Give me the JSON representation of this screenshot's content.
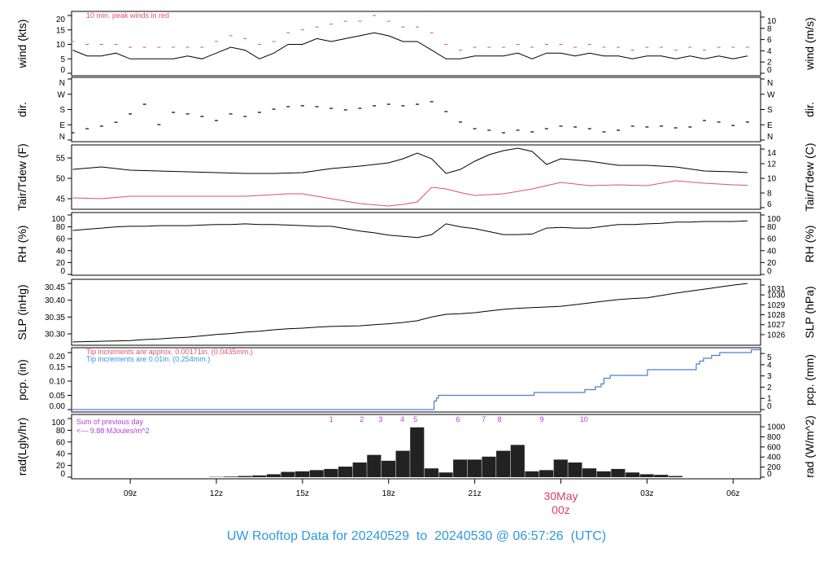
{
  "title": "UW Rooftop Data for 20240529  to  20240530 @ 06:57:26  (UTC)",
  "colors": {
    "line": "#000000",
    "gust": "#e0506e",
    "dew": "#e0506e",
    "pcp": "#4a7fd0",
    "pcp_note2": "#2f97e0",
    "rad_text": "#b040e0",
    "date_label": "#d94060",
    "title": "#2f97e0"
  },
  "chart_data": [
    {
      "type": "line",
      "id": "wind",
      "ylabel": "wind (kts)",
      "ylabel_right": "wind (m/s)",
      "yticks": [
        "0",
        "5",
        "10",
        "15",
        "20"
      ],
      "ylim": [
        0,
        20
      ],
      "yticks_right": [
        "0",
        "2",
        "4",
        "6",
        "8",
        "10"
      ],
      "annotation": "10 min. peak winds in red",
      "start": "2024-05-29 07:00",
      "interval_minutes": 30,
      "series": [
        {
          "name": "wind",
          "values": [
            8,
            6,
            6,
            7,
            5,
            5,
            5,
            5,
            6,
            5,
            7,
            9,
            8,
            5,
            7,
            10,
            10,
            12,
            11,
            12,
            13,
            14,
            13,
            11,
            11,
            8,
            5,
            5,
            6,
            6,
            6,
            7,
            5,
            7,
            7,
            6,
            7,
            6,
            6,
            5,
            6,
            6,
            5,
            6,
            5,
            6,
            5,
            6
          ]
        },
        {
          "name": "10 min. peak winds",
          "values": [
            11,
            10,
            10,
            10,
            9,
            9,
            9,
            9,
            9,
            9,
            11,
            13,
            12,
            10,
            11,
            14,
            15,
            16,
            17,
            18,
            18,
            20,
            18,
            16,
            16,
            14,
            10,
            8,
            9,
            9,
            9,
            10,
            9,
            10,
            10,
            9,
            10,
            9,
            9,
            8,
            9,
            9,
            8,
            9,
            8,
            9,
            9,
            9
          ]
        }
      ]
    },
    {
      "type": "scatter",
      "id": "dir",
      "ylabel": "dir.",
      "ylabel_right": "dir.",
      "yticks": [
        "N",
        "E",
        "S",
        "W",
        "N"
      ],
      "ylim": [
        0,
        360
      ],
      "start": "2024-05-29 07:00",
      "interval_minutes": 30,
      "series": [
        {
          "values": [
            43,
            67,
            82,
            105,
            154,
            211,
            91,
            163,
            154,
            139,
            115,
            154,
            139,
            163,
            182,
            197,
            202,
            197,
            187,
            178,
            187,
            202,
            211,
            202,
            211,
            226,
            168,
            106,
            67,
            58,
            43,
            58,
            48,
            67,
            82,
            77,
            67,
            48,
            58,
            82,
            77,
            82,
            72,
            77,
            115,
            106,
            86,
            106
          ]
        }
      ]
    },
    {
      "type": "line",
      "id": "temp",
      "ylabel": "Tair/Tdew (F)",
      "ylabel_right": "Tair/Tdew (C)",
      "yticks": [
        "45",
        "50",
        "55"
      ],
      "ylim": [
        45,
        55
      ],
      "yticks_right": [
        "6",
        "8",
        "10",
        "12",
        "14"
      ],
      "start": "2024-05-29 07:00",
      "interval_minutes": 30,
      "series": [
        {
          "name": "Tair",
          "values": [
            52.2,
            52.5,
            52.8,
            52.4,
            52.0,
            51.9,
            51.8,
            51.7,
            51.6,
            51.5,
            51.4,
            51.3,
            51.2,
            51.2,
            51.2,
            51.3,
            51.4,
            51.9,
            52.4,
            52.7,
            53.0,
            53.4,
            53.8,
            54.8,
            56.2,
            54.8,
            51.2,
            52.2,
            54.2,
            55.8,
            56.8,
            57.4,
            56.6,
            53.4,
            54.8,
            54.5,
            54.2,
            53.7,
            53.2,
            53.2,
            53.2,
            53.0,
            52.8,
            52.3,
            51.8,
            51.7,
            51.6,
            51.4
          ]
        },
        {
          "name": "Tdew",
          "values": [
            45.2,
            45.1,
            45.0,
            45.3,
            45.6,
            45.6,
            45.6,
            45.6,
            45.6,
            45.6,
            45.6,
            45.6,
            45.6,
            45.8,
            46.0,
            46.2,
            46.2,
            45.6,
            45.0,
            44.4,
            43.8,
            43.5,
            43.2,
            43.6,
            44.2,
            47.8,
            47.4,
            46.5,
            45.8,
            46.0,
            46.2,
            46.8,
            47.4,
            48.2,
            49.0,
            48.6,
            48.2,
            48.3,
            48.4,
            48.3,
            48.2,
            48.8,
            49.4,
            49.1,
            48.8,
            48.6,
            48.4,
            48.3
          ]
        }
      ]
    },
    {
      "type": "line",
      "id": "rh",
      "ylabel": "RH (%)",
      "ylabel_right": "RH (%)",
      "yticks": [
        "0",
        "20",
        "40",
        "60",
        "80",
        "100"
      ],
      "ylim": [
        0,
        100
      ],
      "yticks_right": [
        "0",
        "20",
        "40",
        "60",
        "80",
        "100"
      ],
      "start": "2024-05-29 07:00",
      "interval_minutes": 30,
      "series": [
        {
          "values": [
            74,
            76,
            78,
            80,
            81,
            81,
            82,
            82,
            82,
            83,
            84,
            84,
            85,
            84,
            84,
            83,
            82,
            81,
            81,
            77,
            73,
            70,
            66,
            64,
            62,
            67,
            85,
            80,
            77,
            72,
            67,
            67,
            68,
            78,
            79,
            78,
            78,
            81,
            84,
            84,
            85,
            86,
            88,
            88,
            89,
            89,
            89,
            90
          ]
        }
      ]
    },
    {
      "type": "line",
      "id": "slp",
      "ylabel": "SLP (inHg)",
      "ylabel_right": "SLP (hPa)",
      "yticks": [
        "30.30",
        "30.35",
        "30.40",
        "30.45"
      ],
      "ylim": [
        30.3,
        30.45
      ],
      "yticks_right": [
        "1026",
        "1027",
        "1028",
        "1029",
        "1030",
        "1031"
      ],
      "start": "2024-05-29 07:00",
      "interval_minutes": 30,
      "series": [
        {
          "values": [
            30.276,
            30.277,
            30.278,
            30.279,
            30.28,
            30.283,
            30.285,
            30.288,
            30.29,
            30.294,
            30.298,
            30.301,
            30.305,
            30.308,
            30.312,
            30.315,
            30.317,
            30.32,
            30.322,
            30.323,
            30.324,
            30.327,
            30.33,
            30.334,
            30.339,
            30.35,
            30.358,
            30.36,
            30.363,
            30.368,
            30.373,
            30.376,
            30.378,
            30.38,
            30.382,
            30.387,
            30.392,
            30.397,
            30.402,
            30.405,
            30.407,
            30.414,
            30.421,
            30.427,
            30.433,
            30.439,
            30.445,
            30.45
          ]
        }
      ]
    },
    {
      "type": "line",
      "id": "pcp",
      "ylabel": "pcp. (in)",
      "ylabel_right": "pcp. (mm)",
      "yticks": [
        "0.00",
        "0.05",
        "0.10",
        "0.15",
        "0.20"
      ],
      "ylim": [
        0,
        0.2
      ],
      "yticks_right": [
        "0",
        "1",
        "2",
        "3",
        "4",
        "5"
      ],
      "notes": [
        "Tip increments are approx. 0.00171in. (0.0435mm.)",
        "Tip increments are 0.01in. (0.254mm.)"
      ],
      "steps": [
        [
          "05-29 06:57",
          0
        ],
        [
          "05-29 19:28",
          0
        ],
        [
          "05-29 19:35",
          0.03
        ],
        [
          "05-29 19:40",
          0.04
        ],
        [
          "05-29 19:44",
          0.05
        ],
        [
          "05-29 23:04",
          0.06
        ],
        [
          "05-30 00:50",
          0.07
        ],
        [
          "05-30 01:12",
          0.08
        ],
        [
          "05-30 01:24",
          0.09
        ],
        [
          "05-30 01:30",
          0.11
        ],
        [
          "05-30 01:43",
          0.12
        ],
        [
          "05-30 03:01",
          0.14
        ],
        [
          "05-30 04:43",
          0.16
        ],
        [
          "05-30 04:50",
          0.17
        ],
        [
          "05-30 04:58",
          0.18
        ],
        [
          "05-30 05:15",
          0.19
        ],
        [
          "05-30 05:32",
          0.2
        ],
        [
          "05-30 06:38",
          0.21
        ],
        [
          "05-30 06:57",
          0.21
        ]
      ]
    },
    {
      "type": "bar",
      "id": "rad",
      "ylabel": "rad(Lgly/hr)",
      "ylabel_right": "rad (W/m^2)",
      "yticks": [
        "0",
        "20",
        "40",
        "60",
        "80",
        "100"
      ],
      "ylim": [
        0,
        100
      ],
      "yticks_right": [
        "0",
        "200",
        "400",
        "600",
        "800",
        "1000"
      ],
      "summary": [
        "Sum of previous day",
        "<--- 9.88 MJoules/m^2"
      ],
      "markers": [
        [
          "05-29 16:00",
          "1"
        ],
        [
          "05-29 17:04",
          "2"
        ],
        [
          "05-29 17:43",
          "3"
        ],
        [
          "05-29 18:29",
          "4"
        ],
        [
          "05-29 18:56",
          "5"
        ],
        [
          "05-29 20:25",
          "6"
        ],
        [
          "05-29 21:19",
          "7"
        ],
        [
          "05-29 21:52",
          "8"
        ],
        [
          "05-29 23:20",
          "9"
        ],
        [
          "05-30 00:48",
          "10"
        ]
      ],
      "start": "2024-05-29 07:00",
      "interval_minutes": 30,
      "series": [
        {
          "values": [
            0,
            0,
            0,
            0,
            0,
            0,
            0,
            0,
            0,
            0,
            0.5,
            1,
            2,
            3,
            5,
            9,
            10,
            12,
            14,
            18,
            25,
            38,
            28,
            45,
            85,
            15,
            8,
            30,
            30,
            35,
            45,
            55,
            10,
            12,
            30,
            25,
            15,
            10,
            14,
            8,
            5,
            4,
            2,
            0,
            0,
            0,
            0,
            0
          ]
        }
      ]
    }
  ],
  "xaxis": {
    "ticks": [
      [
        "05-29 09:00",
        "09z"
      ],
      [
        "05-29 12:00",
        "12z"
      ],
      [
        "05-29 15:00",
        "15z"
      ],
      [
        "05-29 18:00",
        "18z"
      ],
      [
        "05-29 21:00",
        "21z"
      ],
      [
        "05-30 03:00",
        "03z"
      ],
      [
        "05-30 06:00",
        "06z"
      ]
    ],
    "date_tick": [
      "05-30 00:00",
      "30May",
      "00z"
    ],
    "range": [
      "05-29 06:57",
      "05-30 06:57"
    ]
  }
}
